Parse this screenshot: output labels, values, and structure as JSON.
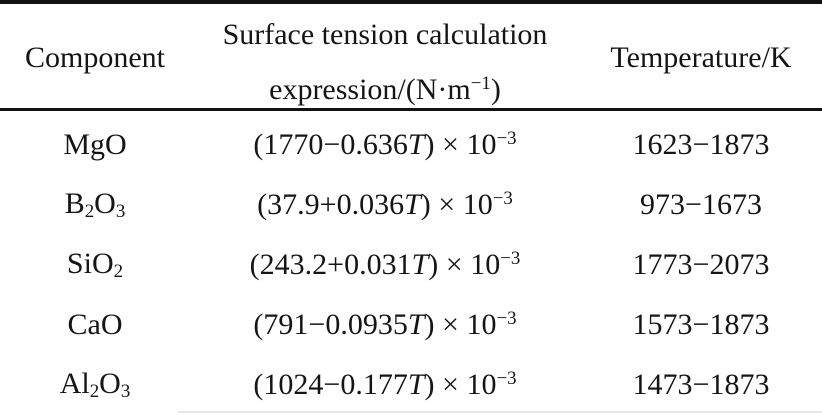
{
  "page": {
    "background": "#ffffff",
    "text_color": "#151515",
    "rule_color": "#121212",
    "bottom_rule_faint_color": "#e8e8e8"
  },
  "table": {
    "header": {
      "component": "Component",
      "expression_line1": "Surface tension calculation",
      "expression_line2": [
        [
          "expression/(N·m"
        ],
        [
          "−1",
          "sup"
        ],
        [
          ")"
        ]
      ],
      "temperature": "Temperature/K"
    },
    "rows": [
      {
        "component": [
          [
            "MgO"
          ]
        ],
        "expression": [
          [
            "(1770−0.636"
          ],
          [
            "T",
            "i"
          ],
          [
            ") × 10"
          ],
          [
            "−3",
            "sup"
          ]
        ],
        "temperature": "1623−1873"
      },
      {
        "component": [
          [
            "B"
          ],
          [
            "2",
            "sub"
          ],
          [
            "O"
          ],
          [
            "3",
            "sub"
          ]
        ],
        "expression": [
          [
            "(37.9+0.036"
          ],
          [
            "T",
            "i"
          ],
          [
            ") × 10"
          ],
          [
            "−3",
            "sup"
          ]
        ],
        "temperature": "973−1673"
      },
      {
        "component": [
          [
            "SiO"
          ],
          [
            "2",
            "sub"
          ]
        ],
        "expression": [
          [
            "(243.2+0.031"
          ],
          [
            "T",
            "i"
          ],
          [
            ") × 10"
          ],
          [
            "−3",
            "sup"
          ]
        ],
        "temperature": "1773−2073"
      },
      {
        "component": [
          [
            "CaO"
          ]
        ],
        "expression": [
          [
            "(791−0.0935"
          ],
          [
            "T",
            "i"
          ],
          [
            ") × 10"
          ],
          [
            "−3",
            "sup"
          ]
        ],
        "temperature": "1573−1873"
      },
      {
        "component": [
          [
            "Al"
          ],
          [
            "2",
            "sub"
          ],
          [
            "O"
          ],
          [
            "3",
            "sub"
          ]
        ],
        "expression": [
          [
            "(1024−0.177"
          ],
          [
            "T",
            "i"
          ],
          [
            ") × 10"
          ],
          [
            "−3",
            "sup"
          ]
        ],
        "temperature": "1473−1873"
      }
    ]
  }
}
